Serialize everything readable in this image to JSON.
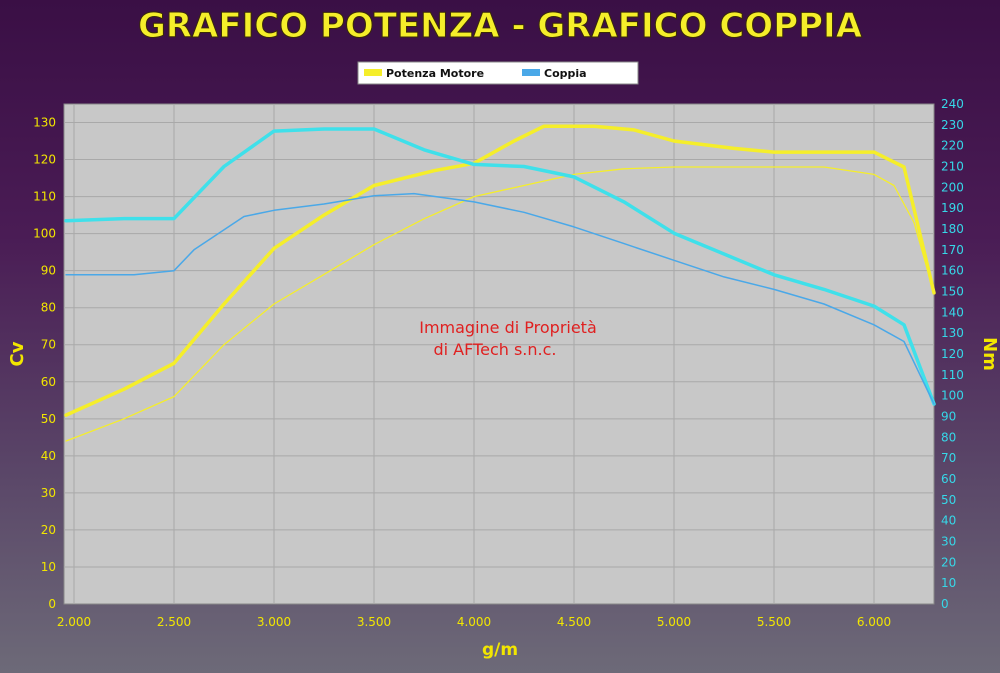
{
  "colors": {
    "power": "#f5ee2a",
    "torque": "#4aa8e8",
    "torque_bold": "#3fe0ea",
    "left_axis_text": "#f2e600",
    "right_axis_text": "#36d8e8",
    "x_axis_text": "#f2e600",
    "title": "#f5ee2a",
    "watermark": "#e02020",
    "plot_bg": "#c8c8c8",
    "grid": "#a9a9a9"
  },
  "chart_data": {
    "type": "line",
    "title": "GRAFICO POTENZA - GRAFICO COPPIA",
    "xlabel": "g/m",
    "ylabel_left": "Cv",
    "ylabel_right": "Nm",
    "xlim": [
      1950,
      6300
    ],
    "ylim_left": [
      0,
      135
    ],
    "ylim_right": [
      0,
      240
    ],
    "x_ticks": [
      2000,
      2500,
      3000,
      3500,
      4000,
      4500,
      5000,
      5500,
      6000
    ],
    "x_tick_labels": [
      "2.000",
      "2.500",
      "3.000",
      "3.500",
      "4.000",
      "4.500",
      "5.000",
      "5.500",
      "6.000"
    ],
    "y_left_ticks": [
      0,
      10,
      20,
      30,
      40,
      50,
      60,
      70,
      80,
      90,
      100,
      110,
      120,
      130
    ],
    "y_right_ticks": [
      0,
      10,
      20,
      30,
      40,
      50,
      60,
      70,
      80,
      90,
      100,
      110,
      120,
      130,
      140,
      150,
      160,
      170,
      180,
      190,
      200,
      210,
      220,
      230,
      240
    ],
    "grid": true,
    "legend": {
      "placement": "top-center",
      "entries": [
        {
          "label": "Potenza Motore",
          "color": "#f5ee2a"
        },
        {
          "label": "Coppia",
          "color": "#4aa8e8"
        }
      ]
    },
    "annotation": {
      "line1": "Immagine di Proprietà",
      "line2": "di AFTech s.n.c."
    },
    "series": [
      {
        "axis": "left",
        "color": "#f5ee2a",
        "width": 3.5,
        "x": [
          1960,
          2250,
          2500,
          2750,
          3000,
          3250,
          3500,
          3800,
          4000,
          4200,
          4350,
          4600,
          4800,
          5000,
          5300,
          5500,
          5800,
          6000,
          6150,
          6300
        ],
        "y": [
          51,
          58,
          65,
          81,
          96,
          105,
          113,
          117,
          119,
          125,
          129,
          129,
          128,
          125,
          123,
          122,
          122,
          122,
          118,
          84
        ]
      },
      {
        "axis": "left",
        "color": "#f5ee2a",
        "width": 1.3,
        "x": [
          1960,
          2250,
          2500,
          2750,
          3000,
          3250,
          3500,
          3750,
          4000,
          4250,
          4500,
          4750,
          5000,
          5500,
          5750,
          6000,
          6100,
          6200,
          6300
        ],
        "y": [
          44,
          50,
          56,
          70,
          81,
          89,
          97,
          104,
          110,
          113,
          116,
          117.5,
          118,
          118,
          118,
          116,
          113,
          103,
          84
        ]
      },
      {
        "axis": "right",
        "color": "#3fe0ea",
        "width": 3.5,
        "x": [
          1960,
          2250,
          2500,
          2750,
          3000,
          3250,
          3500,
          3750,
          4000,
          4250,
          4500,
          4750,
          5000,
          5250,
          5500,
          5750,
          6000,
          6150,
          6300
        ],
        "y": [
          184,
          185,
          185,
          210,
          227,
          228,
          228,
          218,
          211,
          210,
          205,
          193,
          178,
          168,
          158,
          151,
          143,
          134,
          96
        ]
      },
      {
        "axis": "right",
        "color": "#4aa8e8",
        "width": 1.5,
        "x": [
          1960,
          2300,
          2500,
          2600,
          2850,
          3000,
          3250,
          3500,
          3700,
          4000,
          4250,
          4500,
          4750,
          5000,
          5250,
          5500,
          5750,
          6000,
          6150,
          6300
        ],
        "y": [
          158,
          158,
          160,
          170,
          186,
          189,
          192,
          196,
          197,
          193,
          188,
          181,
          173,
          165,
          157,
          151,
          144,
          134,
          126,
          96
        ]
      }
    ]
  }
}
